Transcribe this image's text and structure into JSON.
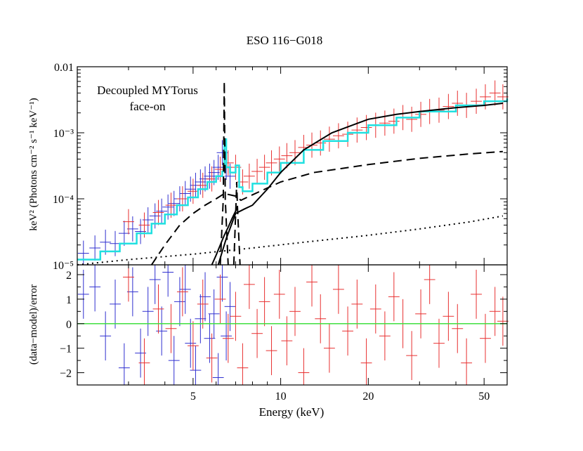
{
  "chart_data": [
    {
      "type": "line",
      "title": "ESO 116−G018",
      "annotation": [
        "Decoupled MYTorus",
        "face-on"
      ],
      "xlabel": "",
      "ylabel": "keV² (Photons cm⁻² s⁻¹ keV⁻¹)",
      "xscale": "log",
      "yscale": "log",
      "xlim": [
        2.0,
        60.0
      ],
      "ylim": [
        1e-05,
        0.01
      ],
      "yticks": [
        {
          "value": 0.01,
          "label": "0.01"
        },
        {
          "value": 0.001,
          "label": "10⁻³"
        },
        {
          "value": 0.0001,
          "label": "10⁻⁴"
        },
        {
          "value": 1e-05,
          "label": "10⁻⁵"
        }
      ],
      "data_colors": {
        "fpma": "#e83030",
        "fpmb": "#3030d0",
        "total_model": "#20e0e0"
      },
      "data_fpmb": {
        "x": [
          2.1,
          2.3,
          2.5,
          2.7,
          2.9,
          3.1,
          3.3,
          3.5,
          3.7,
          3.9,
          4.1,
          4.3,
          4.5,
          4.7,
          4.9,
          5.1,
          5.3,
          5.5,
          5.7,
          5.9,
          6.1,
          6.3,
          6.5,
          6.7
        ],
        "y": [
          1.5e-05,
          1.8e-05,
          2.2e-05,
          2.1e-05,
          3e-05,
          3.5e-05,
          3.2e-05,
          4.8e-05,
          5.5e-05,
          6.5e-05,
          7.5e-05,
          8.5e-05,
          0.0001,
          0.00012,
          0.00014,
          0.00016,
          0.00018,
          0.0002,
          0.00022,
          0.00025,
          0.0003,
          0.0005,
          0.0003,
          0.00022
        ]
      },
      "data_fpma": {
        "x": [
          3.0,
          3.4,
          3.8,
          4.2,
          4.6,
          5.0,
          5.4,
          5.8,
          6.2,
          6.6,
          7.0,
          7.4,
          7.8,
          8.3,
          8.8,
          9.3,
          9.9,
          10.5,
          11.2,
          12.0,
          12.8,
          13.7,
          14.7,
          15.8,
          17.0,
          18.3,
          19.7,
          21.2,
          22.8,
          24.5,
          26.3,
          28.2,
          30.3,
          32.5,
          35.0,
          37.7,
          40.5,
          43.5,
          47.0,
          50.5,
          54.5,
          58.0
        ],
        "y": [
          4.5e-05,
          4e-05,
          6.2e-05,
          8e-05,
          0.0001,
          0.00013,
          0.00016,
          0.0002,
          0.00028,
          0.00035,
          0.0003,
          0.00018,
          0.00022,
          0.00026,
          0.0003,
          0.00035,
          0.0004,
          0.00045,
          0.0005,
          0.0006,
          0.00065,
          0.0007,
          0.0008,
          0.0009,
          0.00095,
          0.0011,
          0.0012,
          0.0013,
          0.0014,
          0.0015,
          0.0017,
          0.0016,
          0.0019,
          0.0021,
          0.0022,
          0.0025,
          0.0028,
          0.0026,
          0.003,
          0.0035,
          0.004,
          0.0035
        ]
      },
      "series": [
        {
          "name": "total model",
          "color": "#20e0e0",
          "style": "step",
          "x": [
            2.0,
            2.4,
            2.8,
            3.2,
            3.6,
            4.0,
            4.4,
            4.8,
            5.2,
            5.6,
            6.0,
            6.3,
            6.4,
            6.5,
            6.7,
            7.0,
            7.2,
            7.4,
            8.0,
            9.0,
            10.0,
            12.0,
            14.0,
            17.0,
            20.0,
            25.0,
            30.0,
            40.0,
            50.0,
            60.0
          ],
          "y": [
            1.2e-05,
            1.6e-05,
            2.1e-05,
            3e-05,
            4.2e-05,
            5.8e-05,
            8e-05,
            0.000105,
            0.00014,
            0.00018,
            0.00022,
            0.00026,
            0.0008,
            0.0003,
            0.00025,
            0.00032,
            0.00015,
            0.00013,
            0.00017,
            0.00025,
            0.00035,
            0.00055,
            0.00075,
            0.001,
            0.0013,
            0.0017,
            0.0021,
            0.0026,
            0.003,
            0.0033
          ]
        },
        {
          "name": "transmitted continuum",
          "color": "#000000",
          "style": "solid",
          "x": [
            6.1,
            6.5,
            7.0,
            7.5,
            8.0,
            9.0,
            10.0,
            12.0,
            15.0,
            20.0,
            25.0,
            30.0,
            40.0,
            50.0,
            58.0
          ],
          "y": [
            1e-05,
            2.5e-05,
            6e-05,
            7e-05,
            8e-05,
            0.00014,
            0.00025,
            0.00055,
            0.001,
            0.0016,
            0.0019,
            0.0021,
            0.0024,
            0.0026,
            0.0028
          ]
        },
        {
          "name": "low-energy transmitted",
          "color": "#000000",
          "style": "solid",
          "x": [
            5.8,
            6.0,
            6.2,
            6.4,
            6.6,
            6.8,
            7.0,
            7.1
          ],
          "y": [
            1e-05,
            1.4e-05,
            2e-05,
            2.8e-05,
            3.7e-05,
            5e-05,
            6.5e-05,
            7.5e-05
          ]
        },
        {
          "name": "scattered continuum",
          "color": "#000000",
          "style": "dashed",
          "x": [
            3.6,
            4.0,
            4.5,
            5.0,
            5.5,
            6.0,
            6.4,
            7.0,
            7.3,
            8.0,
            10.0,
            13.0,
            20.0,
            30.0,
            45.0,
            58.0
          ],
          "y": [
            1e-05,
            2e-05,
            4e-05,
            6e-05,
            8e-05,
            0.0001,
            0.00012,
            0.00011,
            9.5e-05,
            0.000115,
            0.00018,
            0.00025,
            0.00033,
            0.00041,
            0.00048,
            0.00052
          ]
        },
        {
          "name": "Fe K line",
          "color": "#000000",
          "style": "dashed",
          "x": [
            6.2,
            6.35,
            6.4,
            6.45,
            6.6
          ],
          "y": [
            1e-05,
            0.0001,
            0.006,
            0.0001,
            1e-05
          ]
        },
        {
          "name": "Fe K beta line",
          "color": "#000000",
          "style": "dashed",
          "x": [
            6.9,
            7.02,
            7.06,
            7.1,
            7.25
          ],
          "y": [
            1e-05,
            8e-05,
            0.00018,
            8e-05,
            1e-05
          ]
        },
        {
          "name": "soft component",
          "color": "#000000",
          "style": "dotted",
          "x": [
            2.0,
            3.0,
            5.0,
            8.0,
            12.0,
            20.0,
            30.0,
            45.0,
            58.0
          ],
          "y": [
            1e-05,
            1.2e-05,
            1.45e-05,
            1.8e-05,
            2.2e-05,
            2.8e-05,
            3.5e-05,
            4.5e-05,
            5.5e-05
          ]
        }
      ]
    },
    {
      "type": "scatter",
      "title": "",
      "xlabel": "Energy (keV)",
      "ylabel": "(data−model)/error",
      "xscale": "log",
      "xlim": [
        2.0,
        60.0
      ],
      "ylim": [
        -2.5,
        2.4
      ],
      "xticks": [
        {
          "value": 5,
          "label": "5"
        },
        {
          "value": 10,
          "label": "10"
        },
        {
          "value": 20,
          "label": "20"
        },
        {
          "value": 50,
          "label": "50"
        }
      ],
      "yticks": [
        {
          "value": 2,
          "label": "2"
        },
        {
          "value": 1,
          "label": "1"
        },
        {
          "value": 0,
          "label": "0"
        },
        {
          "value": -1,
          "label": "−1"
        },
        {
          "value": -2,
          "label": "−2"
        }
      ],
      "zero_line_color": "#40e040",
      "residuals_fpmb": {
        "x": [
          2.1,
          2.3,
          2.5,
          2.7,
          2.9,
          3.1,
          3.3,
          3.5,
          3.7,
          3.9,
          4.1,
          4.3,
          4.5,
          4.7,
          4.9,
          5.1,
          5.3,
          5.5,
          5.7,
          5.9,
          6.1,
          6.3,
          6.5,
          6.7
        ],
        "y": [
          1.2,
          1.5,
          -0.5,
          0.8,
          -1.8,
          1.3,
          -1.2,
          0.5,
          1.8,
          -0.3,
          2.1,
          -1.5,
          0.9,
          1.4,
          -0.8,
          -1.9,
          0.2,
          1.1,
          -0.6,
          0.4,
          -2.2,
          1.9,
          -0.5,
          0.7
        ]
      },
      "residuals_fpma": {
        "x": [
          3.0,
          3.4,
          3.8,
          4.2,
          4.6,
          5.0,
          5.4,
          5.8,
          6.2,
          6.6,
          7.0,
          7.4,
          7.8,
          8.3,
          8.8,
          9.3,
          9.9,
          10.5,
          11.2,
          12.0,
          12.8,
          13.7,
          14.7,
          15.8,
          17.0,
          18.3,
          19.7,
          21.2,
          22.8,
          24.5,
          26.3,
          28.2,
          30.3,
          32.5,
          35.0,
          37.7,
          40.5,
          43.5,
          47.0,
          50.5,
          54.5,
          58.0
        ],
        "y": [
          1.9,
          -1.6,
          0.6,
          -0.2,
          1.3,
          -0.9,
          0.8,
          -1.4,
          1.0,
          -0.6,
          0.3,
          -1.8,
          1.6,
          -0.4,
          0.9,
          -1.1,
          1.2,
          -0.7,
          0.5,
          -2.0,
          1.7,
          0.2,
          -1.0,
          1.4,
          -0.3,
          0.8,
          -1.6,
          0.6,
          -0.5,
          1.1,
          0.0,
          -1.3,
          0.4,
          1.8,
          -0.8,
          0.3,
          -0.2,
          -1.6,
          1.2,
          -0.6,
          0.5,
          0.1
        ]
      }
    }
  ]
}
